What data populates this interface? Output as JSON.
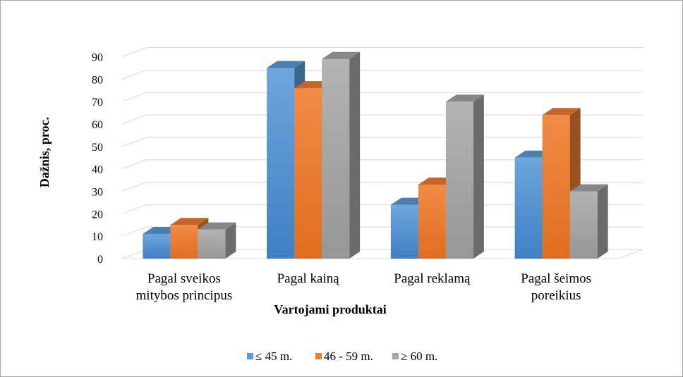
{
  "chart_data": {
    "type": "bar",
    "style": "3d-clustered-column",
    "xlabel": "Vartojami produktai",
    "ylabel": "Dažnis, proc.",
    "ylim": [
      0,
      90
    ],
    "yticks": [
      0,
      10,
      20,
      30,
      40,
      50,
      60,
      70,
      80,
      90
    ],
    "grid": true,
    "legend_position": "bottom",
    "categories": [
      [
        "Pagal sveikos",
        "mitybos principus"
      ],
      [
        "Pagal kainą"
      ],
      [
        "Pagal reklamą"
      ],
      [
        "Pagal šeimos",
        "poreikius"
      ]
    ],
    "series": [
      {
        "name": "≤ 45 m.",
        "values": [
          11,
          85,
          24,
          45
        ],
        "color": "#5b9bd5"
      },
      {
        "name": "46 - 59 m.",
        "values": [
          15,
          76,
          33,
          64
        ],
        "color": "#ed7d31"
      },
      {
        "name": "≥ 60 m.",
        "values": [
          13,
          89,
          70,
          30
        ],
        "color": "#a5a5a5"
      }
    ]
  }
}
